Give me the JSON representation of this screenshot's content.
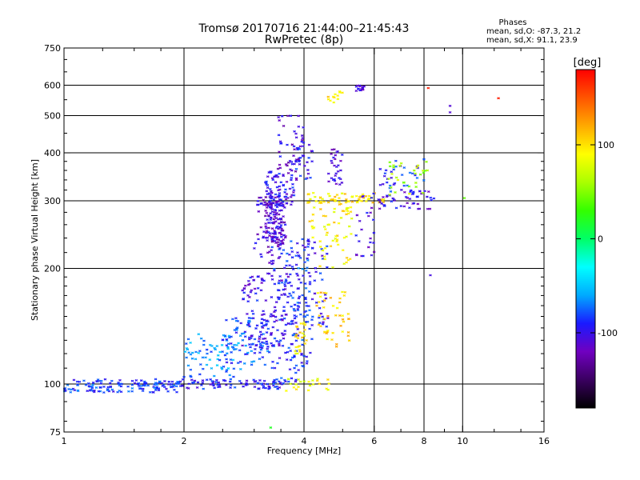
{
  "chart_data": {
    "type": "scatter",
    "title": "Tromsø 20170716 21:44:00–21:45:43",
    "subtitle": "RwPretec (8p)",
    "xlabel": "Frequency [MHz]",
    "ylabel": "Stationary phase Virtual Height [km]",
    "x_scale": "log2",
    "y_scale": "log",
    "xlim": [
      1,
      16
    ],
    "ylim": [
      75,
      750
    ],
    "x_ticks": [
      1,
      2,
      4,
      6,
      8,
      10,
      16
    ],
    "y_ticks": [
      75,
      100,
      200,
      300,
      400,
      500,
      600,
      750
    ],
    "x_grid": [
      2,
      4,
      6,
      8,
      10
    ],
    "y_grid": [
      100,
      200,
      300,
      400,
      500,
      600
    ],
    "stats": {
      "header": "Phases",
      "o_line": "mean, sd,O: -87.3, 21.2",
      "x_line": "mean, sd,X:  91.1, 23.9"
    },
    "colorbar": {
      "label": "[deg]",
      "range": [
        -180,
        180
      ],
      "ticks": [
        100,
        0,
        -100
      ],
      "colors": [
        "#000000",
        "#3a0060",
        "#7000c0",
        "#1a1aff",
        "#00aaff",
        "#00ffff",
        "#00ff66",
        "#33ff00",
        "#aaff00",
        "#ffff00",
        "#ffaa00",
        "#ff5500",
        "#ff0000"
      ]
    },
    "clusters": [
      {
        "f0": 1.0,
        "f1": 1.95,
        "h0": 95,
        "h1": 103,
        "phase": -85,
        "n": 140
      },
      {
        "f0": 1.95,
        "f1": 3.6,
        "h0": 97,
        "h1": 103,
        "phase": -95,
        "n": 90
      },
      {
        "f0": 3.6,
        "f1": 4.7,
        "h0": 96,
        "h1": 104,
        "phase": 90,
        "n": 22
      },
      {
        "f0": 2.0,
        "f1": 2.8,
        "h0": 104,
        "h1": 135,
        "phase": -65,
        "n": 70
      },
      {
        "f0": 2.5,
        "f1": 3.3,
        "h0": 112,
        "h1": 150,
        "phase": -80,
        "n": 90
      },
      {
        "f0": 2.8,
        "f1": 3.8,
        "h0": 125,
        "h1": 195,
        "phase": -100,
        "n": 120
      },
      {
        "f0": 3.3,
        "f1": 3.9,
        "h0": 100,
        "h1": 230,
        "phase": -90,
        "n": 90
      },
      {
        "f0": 3.7,
        "f1": 4.2,
        "h0": 110,
        "h1": 240,
        "phase": -85,
        "n": 80
      },
      {
        "f0": 3.8,
        "f1": 4.1,
        "h0": 120,
        "h1": 145,
        "phase": 95,
        "n": 25
      },
      {
        "f0": 4.0,
        "f1": 4.6,
        "h0": 140,
        "h1": 240,
        "phase": -95,
        "n": 40
      },
      {
        "f0": 4.3,
        "f1": 5.2,
        "h0": 125,
        "h1": 175,
        "phase": 105,
        "n": 45
      },
      {
        "f0": 4.1,
        "f1": 5.3,
        "h0": 195,
        "h1": 300,
        "phase": 95,
        "n": 65
      },
      {
        "f0": 3.0,
        "f1": 3.5,
        "h0": 205,
        "h1": 310,
        "phase": -110,
        "n": 60
      },
      {
        "f0": 3.2,
        "f1": 3.6,
        "h0": 230,
        "h1": 300,
        "phase": -110,
        "n": 110
      },
      {
        "f0": 3.2,
        "f1": 3.8,
        "h0": 290,
        "h1": 360,
        "phase": -100,
        "n": 80
      },
      {
        "f0": 3.4,
        "f1": 4.0,
        "h0": 340,
        "h1": 500,
        "phase": -110,
        "n": 50
      },
      {
        "f0": 3.8,
        "f1": 4.2,
        "h0": 340,
        "h1": 420,
        "phase": -95,
        "n": 25
      },
      {
        "f0": 4.6,
        "f1": 5.0,
        "h0": 330,
        "h1": 410,
        "phase": -110,
        "n": 30
      },
      {
        "f0": 4.0,
        "f1": 6.5,
        "h0": 295,
        "h1": 315,
        "phase": 100,
        "n": 60
      },
      {
        "f0": 5.4,
        "f1": 6.0,
        "h0": 215,
        "h1": 280,
        "phase": -105,
        "n": 20
      },
      {
        "f0": 5.6,
        "f1": 8.5,
        "h0": 285,
        "h1": 320,
        "phase": -105,
        "n": 50
      },
      {
        "f0": 6.2,
        "f1": 8.0,
        "h0": 315,
        "h1": 390,
        "phase": -90,
        "n": 35
      },
      {
        "f0": 6.5,
        "f1": 8.2,
        "h0": 310,
        "h1": 380,
        "phase": 60,
        "n": 30
      },
      {
        "f0": 4.6,
        "f1": 5.1,
        "h0": 540,
        "h1": 580,
        "phase": 100,
        "n": 12
      },
      {
        "f0": 5.4,
        "f1": 5.7,
        "h0": 580,
        "h1": 600,
        "phase": -110,
        "n": 16
      }
    ],
    "points": [
      {
        "x": 8.2,
        "y": 590,
        "phase": 170
      },
      {
        "x": 9.3,
        "y": 530,
        "phase": -110
      },
      {
        "x": 9.3,
        "y": 510,
        "phase": -110
      },
      {
        "x": 12.3,
        "y": 555,
        "phase": 170
      },
      {
        "x": 8.3,
        "y": 192,
        "phase": -105
      },
      {
        "x": 3.3,
        "y": 77,
        "phase": 20
      },
      {
        "x": 10.1,
        "y": 305,
        "phase": 40
      }
    ]
  }
}
